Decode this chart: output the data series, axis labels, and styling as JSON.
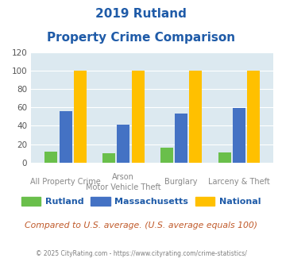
{
  "title_line1": "2019 Rutland",
  "title_line2": "Property Crime Comparison",
  "cat_labels_row1": [
    "All Property Crime",
    "Arson",
    "Burglary",
    "Larceny & Theft"
  ],
  "cat_labels_row2": [
    "",
    "Motor Vehicle Theft",
    "",
    ""
  ],
  "rutland": [
    12,
    10,
    16,
    11
  ],
  "massachusetts": [
    56,
    41,
    53,
    59
  ],
  "national": [
    100,
    100,
    100,
    100
  ],
  "color_rutland": "#6abf4b",
  "color_massachusetts": "#4472c4",
  "color_national": "#ffc000",
  "bg_color": "#dce9f0",
  "ylim": [
    0,
    120
  ],
  "yticks": [
    0,
    20,
    40,
    60,
    80,
    100,
    120
  ],
  "title_color": "#1f5ba8",
  "note": "Compared to U.S. average. (U.S. average equals 100)",
  "note_color": "#c05a2a",
  "copyright": "© 2025 CityRating.com - https://www.cityrating.com/crime-statistics/",
  "copyright_color": "#7f7f7f",
  "legend_labels": [
    "Rutland",
    "Massachusetts",
    "National"
  ]
}
